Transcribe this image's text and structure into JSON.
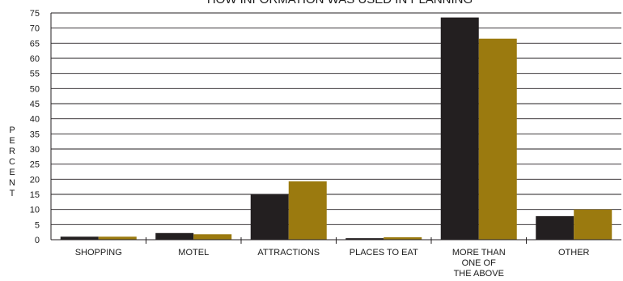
{
  "chart_data": {
    "type": "bar",
    "title": "HOW INFORMATION WAS USED IN PLANNING",
    "ylabel": "PERCENT",
    "xlabel": "",
    "ylim": [
      0,
      75
    ],
    "yticks": [
      0,
      5,
      10,
      15,
      20,
      25,
      30,
      35,
      40,
      45,
      50,
      55,
      60,
      65,
      70,
      75
    ],
    "grid": true,
    "categories": [
      [
        "SHOPPING"
      ],
      [
        "MOTEL"
      ],
      [
        "ATTRACTIONS"
      ],
      [
        "PLACES TO EAT"
      ],
      [
        "MORE THAN",
        "ONE OF",
        "THE ABOVE"
      ],
      [
        "OTHER"
      ]
    ],
    "series": [
      {
        "color": "#231f20",
        "values": [
          1.0,
          2.2,
          15.0,
          0.5,
          73.5,
          7.8
        ]
      },
      {
        "color": "#9b7a0f",
        "values": [
          1.0,
          1.8,
          19.3,
          0.8,
          66.5,
          10.0
        ]
      }
    ]
  }
}
